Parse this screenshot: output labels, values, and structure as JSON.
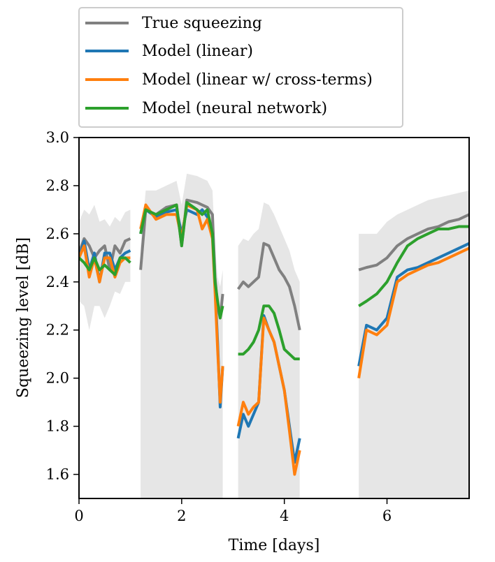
{
  "chart_data": {
    "type": "line",
    "title": "",
    "xlabel": "Time [days]",
    "ylabel": "Squeezing level [dB]",
    "xlim": [
      0,
      7.6
    ],
    "ylim": [
      1.5,
      3.0
    ],
    "xticks": [
      0,
      2,
      4,
      6
    ],
    "yticks": [
      1.6,
      1.8,
      2.0,
      2.2,
      2.4,
      2.6,
      2.8,
      3.0
    ],
    "xtick_labels": [
      "0",
      "2",
      "4",
      "6"
    ],
    "ytick_labels": [
      "1.6",
      "1.8",
      "2.0",
      "2.2",
      "2.4",
      "2.6",
      "2.8",
      "3.0"
    ],
    "legend_position": "top, above plot",
    "grid": false,
    "series": [
      {
        "name": "True squeezing",
        "color": "#808080",
        "segments": [
          {
            "x": [
              0.0,
              0.1,
              0.2,
              0.3,
              0.4,
              0.5,
              0.6,
              0.7,
              0.8,
              0.9,
              1.0
            ],
            "y": [
              2.52,
              2.58,
              2.55,
              2.5,
              2.53,
              2.55,
              2.45,
              2.55,
              2.52,
              2.57,
              2.58
            ]
          },
          {
            "x": [
              1.2,
              1.3,
              1.5,
              1.7,
              1.9,
              2.0,
              2.1,
              2.3,
              2.4,
              2.5,
              2.6,
              2.65,
              2.7,
              2.75,
              2.8
            ],
            "y": [
              2.45,
              2.7,
              2.68,
              2.71,
              2.72,
              2.55,
              2.74,
              2.73,
              2.72,
              2.71,
              2.68,
              2.42,
              2.3,
              2.25,
              2.35
            ]
          },
          {
            "x": [
              3.1,
              3.2,
              3.3,
              3.4,
              3.5,
              3.6,
              3.7,
              3.8,
              3.9,
              4.0,
              4.1,
              4.2,
              4.3
            ],
            "y": [
              2.37,
              2.4,
              2.38,
              2.4,
              2.42,
              2.56,
              2.55,
              2.5,
              2.45,
              2.42,
              2.38,
              2.3,
              2.2
            ]
          },
          {
            "x": [
              5.45,
              5.6,
              5.8,
              6.0,
              6.2,
              6.4,
              6.6,
              6.8,
              7.0,
              7.2,
              7.4,
              7.6
            ],
            "y": [
              2.45,
              2.46,
              2.47,
              2.5,
              2.55,
              2.58,
              2.6,
              2.62,
              2.63,
              2.65,
              2.66,
              2.68
            ]
          }
        ]
      },
      {
        "name": "Model (linear)",
        "color": "#1f77b4",
        "segments": [
          {
            "x": [
              0.0,
              0.1,
              0.2,
              0.3,
              0.4,
              0.5,
              0.6,
              0.7,
              0.8,
              0.9,
              1.0
            ],
            "y": [
              2.5,
              2.57,
              2.45,
              2.52,
              2.4,
              2.52,
              2.52,
              2.45,
              2.5,
              2.52,
              2.53
            ]
          },
          {
            "x": [
              1.2,
              1.3,
              1.5,
              1.7,
              1.9,
              2.0,
              2.1,
              2.3,
              2.4,
              2.5,
              2.6,
              2.65,
              2.7,
              2.75,
              2.8
            ],
            "y": [
              2.6,
              2.7,
              2.67,
              2.69,
              2.7,
              2.6,
              2.7,
              2.68,
              2.7,
              2.67,
              2.6,
              2.38,
              2.15,
              1.88,
              2.05
            ]
          },
          {
            "x": [
              3.1,
              3.2,
              3.3,
              3.4,
              3.5,
              3.6,
              3.7,
              3.8,
              3.9,
              4.0,
              4.1,
              4.2,
              4.3
            ],
            "y": [
              1.75,
              1.85,
              1.8,
              1.85,
              1.9,
              2.26,
              2.2,
              2.15,
              2.05,
              1.95,
              1.8,
              1.65,
              1.75
            ]
          },
          {
            "x": [
              5.45,
              5.6,
              5.8,
              6.0,
              6.2,
              6.4,
              6.6,
              6.8,
              7.0,
              7.2,
              7.4,
              7.6
            ],
            "y": [
              2.05,
              2.22,
              2.2,
              2.25,
              2.42,
              2.45,
              2.46,
              2.48,
              2.5,
              2.52,
              2.54,
              2.56
            ]
          }
        ]
      },
      {
        "name": "Model (linear w/ cross-terms)",
        "color": "#ff7f0e",
        "segments": [
          {
            "x": [
              0.0,
              0.1,
              0.2,
              0.3,
              0.4,
              0.5,
              0.6,
              0.7,
              0.8,
              0.9,
              1.0
            ],
            "y": [
              2.5,
              2.55,
              2.42,
              2.5,
              2.4,
              2.5,
              2.5,
              2.42,
              2.48,
              2.5,
              2.5
            ]
          },
          {
            "x": [
              1.2,
              1.3,
              1.5,
              1.7,
              1.9,
              2.0,
              2.1,
              2.3,
              2.4,
              2.5,
              2.6,
              2.65,
              2.7,
              2.75,
              2.8
            ],
            "y": [
              2.62,
              2.72,
              2.66,
              2.68,
              2.68,
              2.58,
              2.72,
              2.7,
              2.62,
              2.66,
              2.58,
              2.36,
              2.12,
              1.9,
              2.05
            ]
          },
          {
            "x": [
              3.1,
              3.2,
              3.3,
              3.4,
              3.5,
              3.6,
              3.7,
              3.8,
              3.9,
              4.0,
              4.1,
              4.2,
              4.3
            ],
            "y": [
              1.8,
              1.9,
              1.85,
              1.88,
              1.9,
              2.25,
              2.2,
              2.15,
              2.05,
              1.95,
              1.78,
              1.6,
              1.7
            ]
          },
          {
            "x": [
              5.45,
              5.6,
              5.8,
              6.0,
              6.2,
              6.4,
              6.6,
              6.8,
              7.0,
              7.2,
              7.4,
              7.6
            ],
            "y": [
              2.0,
              2.2,
              2.18,
              2.22,
              2.4,
              2.43,
              2.45,
              2.47,
              2.48,
              2.5,
              2.52,
              2.54
            ]
          }
        ]
      },
      {
        "name": "Model (neural network)",
        "color": "#2ca02c",
        "segments": [
          {
            "x": [
              0.0,
              0.1,
              0.2,
              0.3,
              0.4,
              0.5,
              0.6,
              0.7,
              0.8,
              0.9,
              1.0
            ],
            "y": [
              2.5,
              2.48,
              2.45,
              2.5,
              2.45,
              2.47,
              2.45,
              2.43,
              2.5,
              2.5,
              2.48
            ]
          },
          {
            "x": [
              1.2,
              1.3,
              1.5,
              1.7,
              1.9,
              2.0,
              2.1,
              2.3,
              2.4,
              2.5,
              2.6,
              2.65,
              2.7,
              2.75,
              2.8
            ],
            "y": [
              2.6,
              2.7,
              2.68,
              2.7,
              2.72,
              2.55,
              2.73,
              2.7,
              2.68,
              2.7,
              2.6,
              2.4,
              2.32,
              2.25,
              2.3
            ]
          },
          {
            "x": [
              3.1,
              3.2,
              3.3,
              3.4,
              3.5,
              3.6,
              3.7,
              3.8,
              3.9,
              4.0,
              4.1,
              4.2,
              4.3
            ],
            "y": [
              2.1,
              2.1,
              2.12,
              2.15,
              2.2,
              2.3,
              2.3,
              2.27,
              2.2,
              2.12,
              2.1,
              2.08,
              2.08
            ]
          },
          {
            "x": [
              5.45,
              5.6,
              5.8,
              6.0,
              6.2,
              6.4,
              6.6,
              6.8,
              7.0,
              7.2,
              7.4,
              7.6
            ],
            "y": [
              2.3,
              2.32,
              2.35,
              2.4,
              2.48,
              2.55,
              2.58,
              2.6,
              2.62,
              2.62,
              2.63,
              2.63
            ]
          }
        ]
      }
    ],
    "uncertainty_band": {
      "color": "#e6e6e6",
      "of_series": "True squeezing",
      "segments": [
        {
          "x": [
            0.0,
            0.1,
            0.2,
            0.3,
            0.4,
            0.5,
            0.6,
            0.7,
            0.8,
            0.9,
            1.0
          ],
          "upper": [
            2.65,
            2.7,
            2.68,
            2.72,
            2.65,
            2.66,
            2.63,
            2.67,
            2.65,
            2.69,
            2.7
          ],
          "lower": [
            2.32,
            2.3,
            2.2,
            2.3,
            2.3,
            2.25,
            2.3,
            2.36,
            2.35,
            2.4,
            2.4
          ]
        },
        {
          "x": [
            1.2,
            1.3,
            1.5,
            1.7,
            1.9,
            2.0,
            2.1,
            2.3,
            2.4,
            2.5,
            2.6,
            2.65,
            2.7,
            2.75,
            2.8
          ],
          "upper": [
            2.55,
            2.78,
            2.78,
            2.8,
            2.82,
            2.72,
            2.85,
            2.84,
            2.83,
            2.82,
            2.78,
            2.55,
            2.42,
            2.38,
            2.45
          ]
        },
        {
          "x": [
            3.1,
            3.2,
            3.3,
            3.4,
            3.5,
            3.6,
            3.7,
            3.8,
            3.9,
            4.0,
            4.1,
            4.2,
            4.3
          ],
          "upper": [
            2.55,
            2.58,
            2.57,
            2.6,
            2.62,
            2.73,
            2.72,
            2.68,
            2.63,
            2.58,
            2.53,
            2.45,
            2.4
          ]
        },
        {
          "x": [
            5.45,
            5.6,
            5.8,
            6.0,
            6.2,
            6.4,
            6.6,
            6.8,
            7.0,
            7.2,
            7.4,
            7.6
          ],
          "upper": [
            2.6,
            2.6,
            2.6,
            2.65,
            2.68,
            2.7,
            2.72,
            2.74,
            2.75,
            2.76,
            2.77,
            2.78
          ]
        }
      ]
    }
  }
}
